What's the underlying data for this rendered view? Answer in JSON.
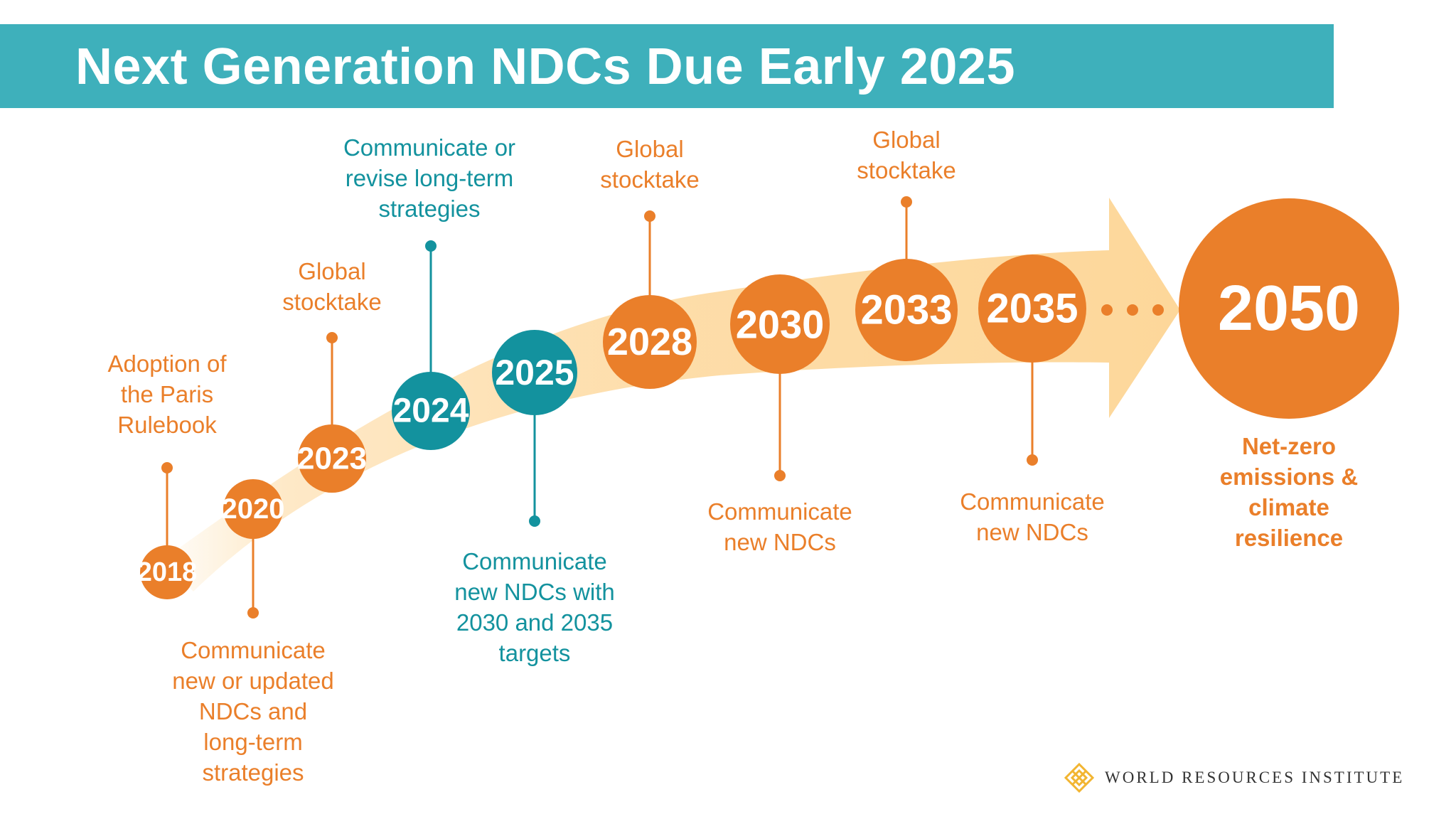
{
  "title": "Next Generation NDCs Due Early 2025",
  "colors": {
    "orange": "#ea7f2a",
    "teal": "#13929e",
    "banner": "#3eb0bb",
    "arrow": "#fdd79a"
  },
  "milestones": [
    {
      "year": "2018",
      "label": "Adoption of\nthe Paris\nRulebook",
      "color": "orange"
    },
    {
      "year": "2020",
      "label": "Communicate\nnew or updated\nNDCs and\nlong-term\nstrategies",
      "color": "orange"
    },
    {
      "year": "2023",
      "label": "Global\nstocktake",
      "color": "orange"
    },
    {
      "year": "2024",
      "label": "Communicate or\nrevise long-term\nstrategies",
      "color": "teal"
    },
    {
      "year": "2025",
      "label": "Communicate\nnew NDCs with\n2030 and 2035\ntargets",
      "color": "teal"
    },
    {
      "year": "2028",
      "label": "Global\nstocktake",
      "color": "orange"
    },
    {
      "year": "2030",
      "label": "Communicate\nnew NDCs",
      "color": "orange"
    },
    {
      "year": "2033",
      "label": "Global\nstocktake",
      "color": "orange"
    },
    {
      "year": "2035",
      "label": "Communicate\nnew NDCs",
      "color": "orange"
    },
    {
      "year": "2050",
      "label": "Net-zero\nemissions &\nclimate\nresilience",
      "color": "orange"
    }
  ],
  "logo": {
    "text": "WORLD RESOURCES INSTITUTE",
    "icon": "wri-lattice-icon"
  }
}
